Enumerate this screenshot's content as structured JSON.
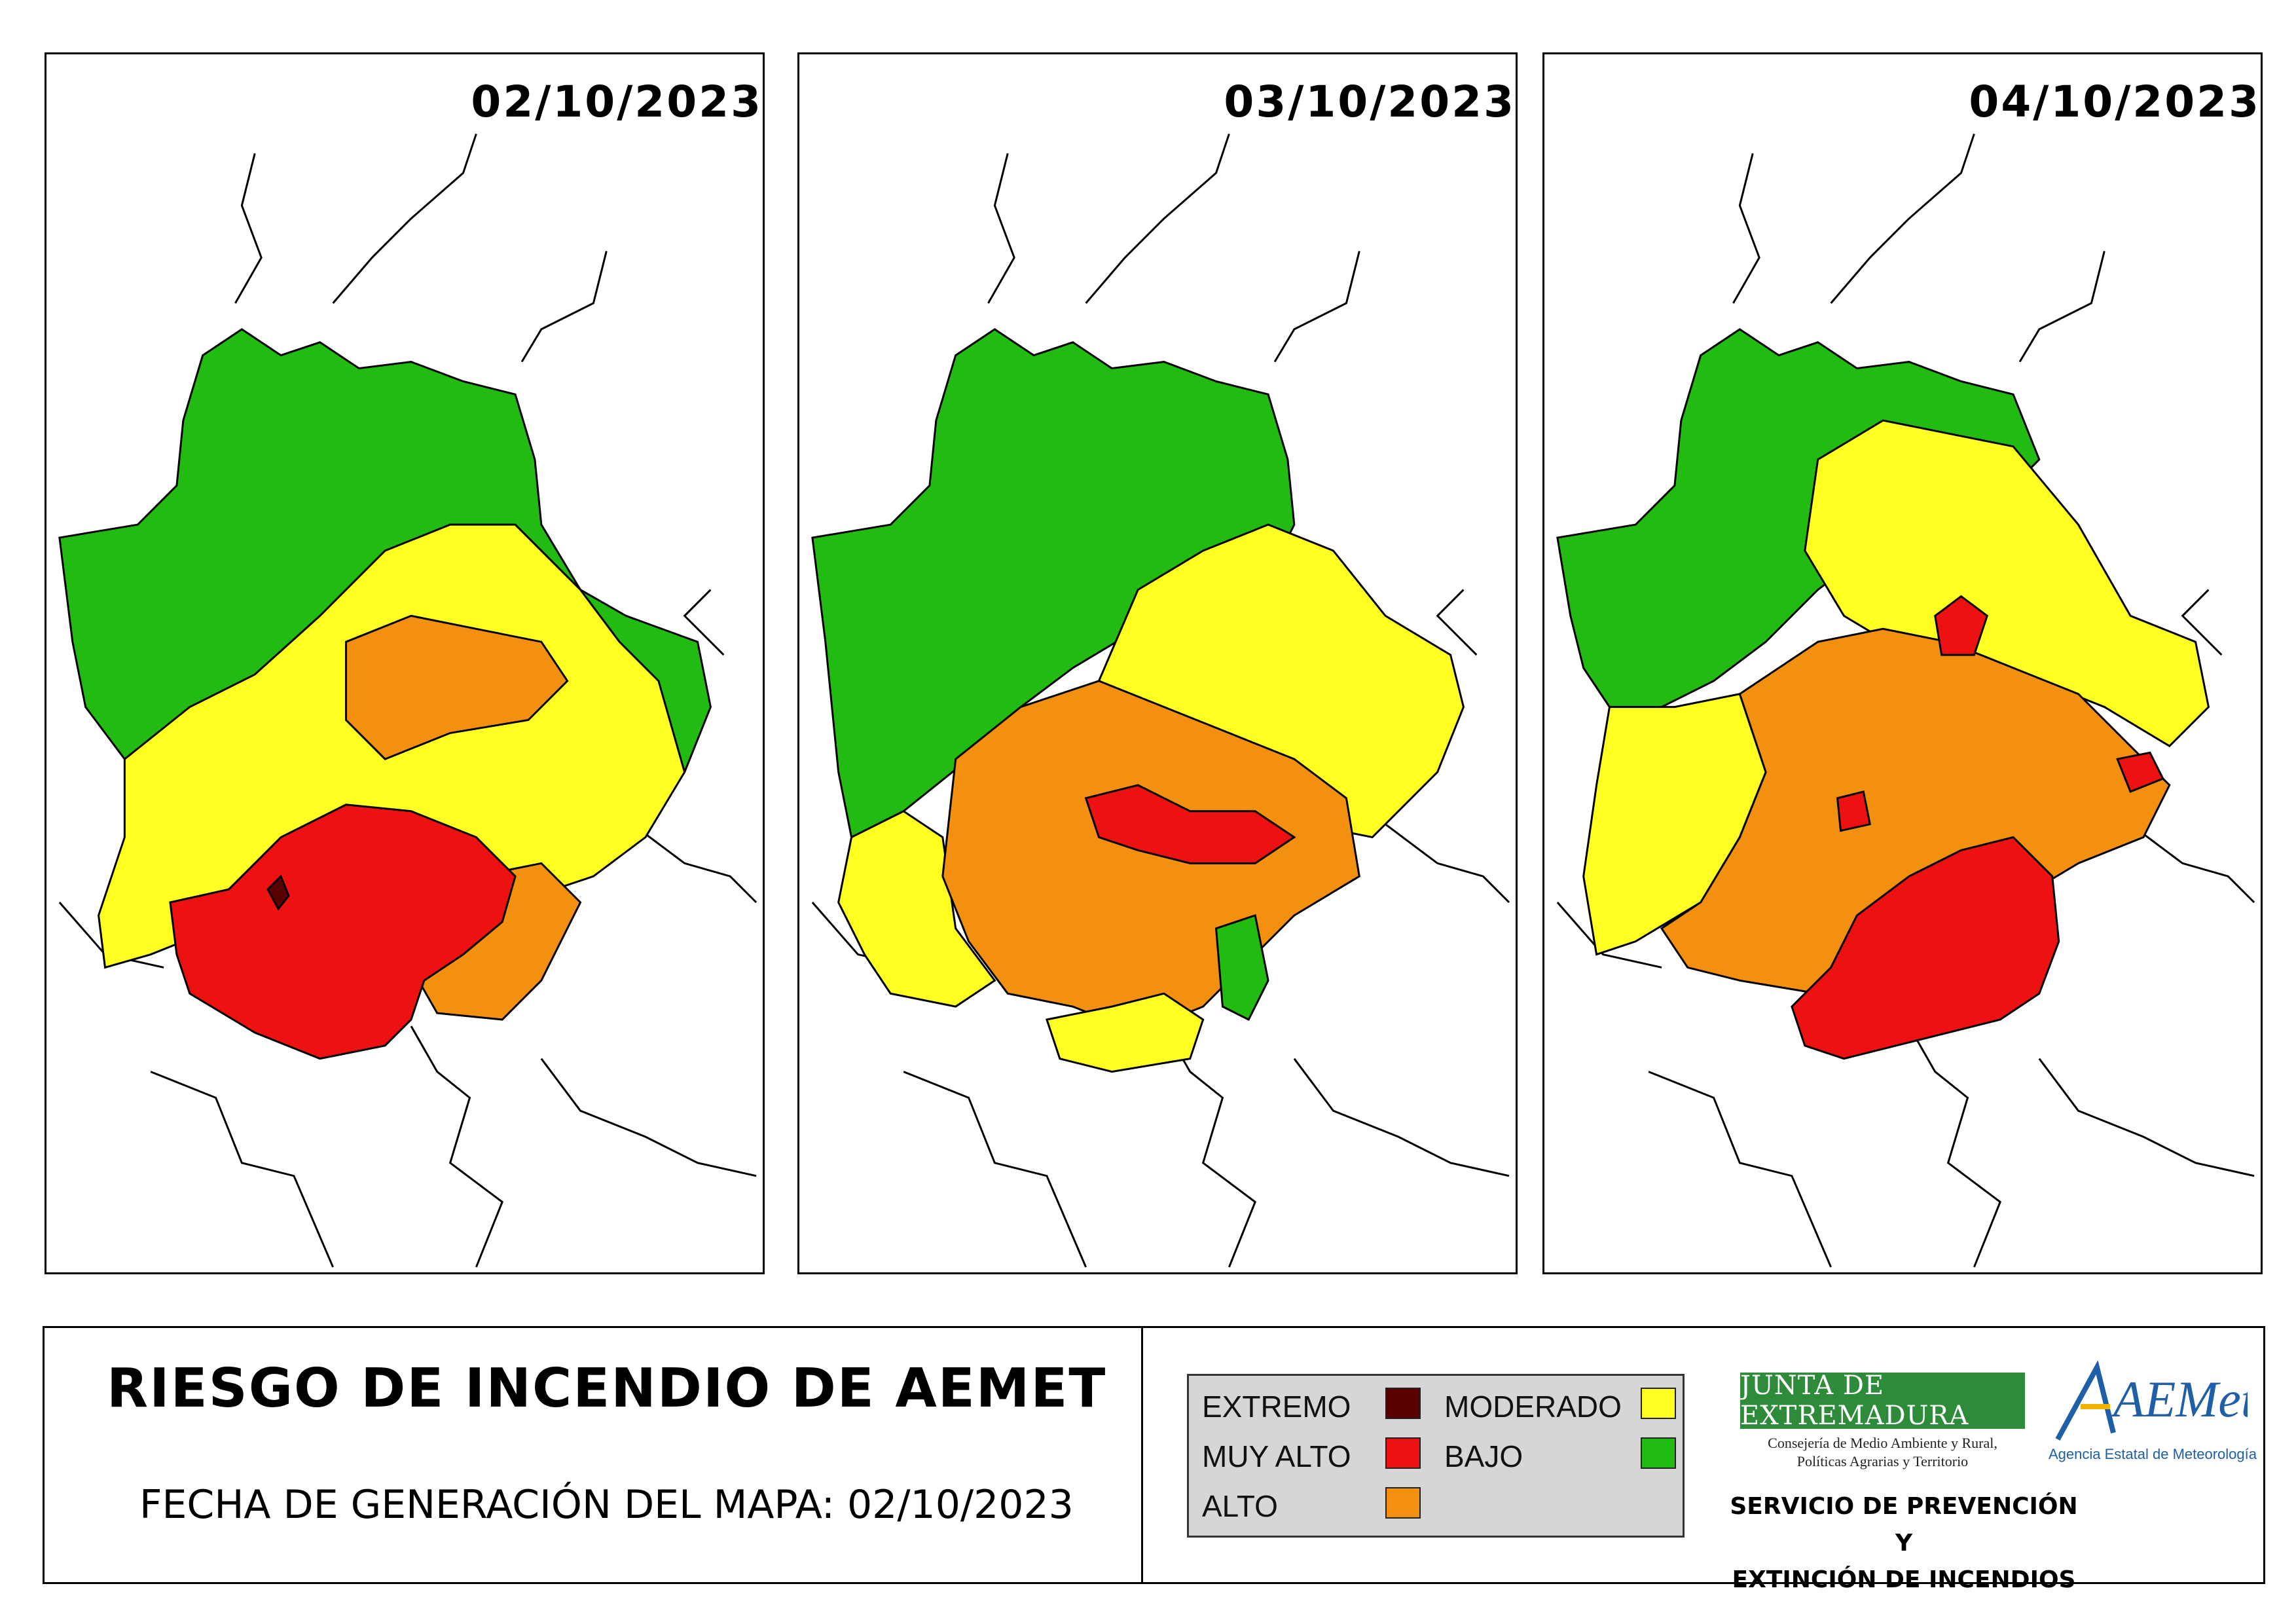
{
  "maps": [
    {
      "date": "02/10/2023"
    },
    {
      "date": "03/10/2023"
    },
    {
      "date": "04/10/2023"
    }
  ],
  "footer": {
    "title": "RIESGO DE INCENDIO DE AEMET",
    "generation_label": "FECHA DE GENERACIÓN DEL MAPA: 02/10/2023"
  },
  "legend": {
    "items": [
      {
        "label": "EXTREMO",
        "color": "#5a0000"
      },
      {
        "label": "MUY ALTO",
        "color": "#ee1111"
      },
      {
        "label": "ALTO",
        "color": "#f39010"
      },
      {
        "label": "MODERADO",
        "color": "#ffff22"
      },
      {
        "label": "BAJO",
        "color": "#22bb11"
      }
    ]
  },
  "logos": {
    "junta_name": "JUNTA DE EXTREMADURA",
    "junta_consejeria_line1": "Consejería de Medio Ambiente y Rural,",
    "junta_consejeria_line2": "Políticas Agrarias y Territorio",
    "aemet_text": "AEMet",
    "aemet_subtitle": "Agencia Estatal de Meteorología",
    "service_line1": "SERVICIO DE PREVENCIÓN Y",
    "service_line2": "EXTINCIÓN DE INCENDIOS"
  }
}
